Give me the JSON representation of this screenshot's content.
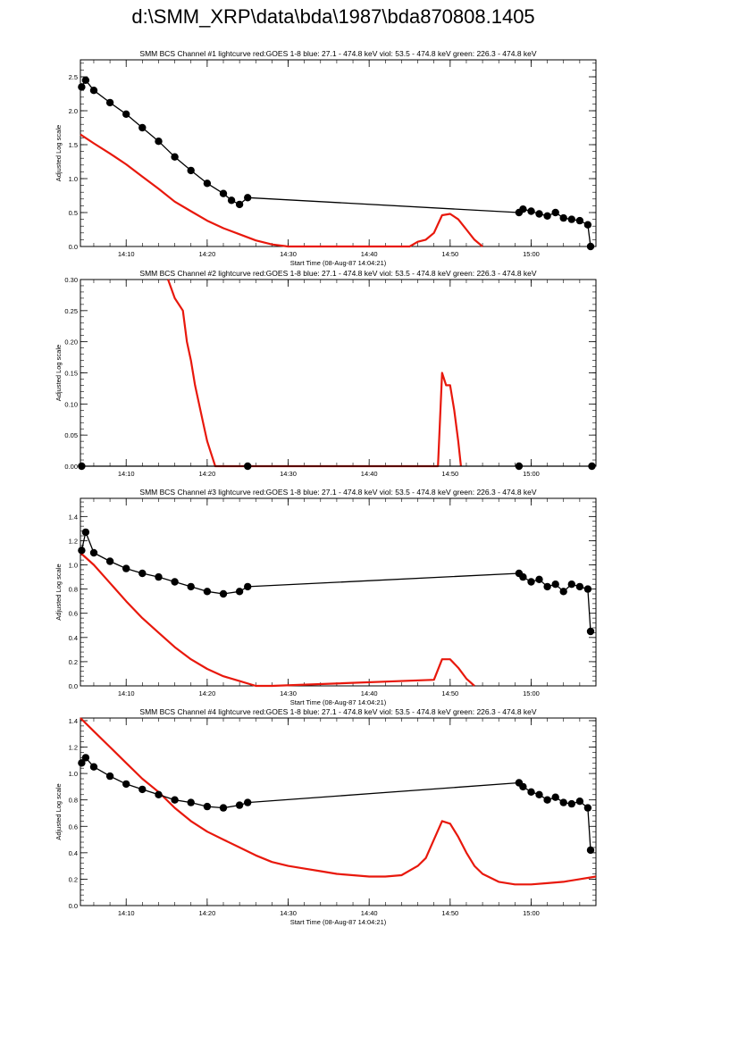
{
  "page_title": "d:\\SMM_XRP\\data\\bda\\1987\\bda870808.1405",
  "colors": {
    "goes": "#e8180c",
    "bcs": "#000000",
    "axes": "#000000"
  },
  "chart_data": [
    {
      "type": "line",
      "title": "SMM BCS Channel #1 lightcurve  red:GOES 1-8  blue: 27.1 - 474.8 keV  viol: 53.5 - 474.8 keV  green: 226.3 - 474.8 keV",
      "xlabel": "Start Time (08-Aug-87 14:04:21)",
      "ylabel": "Adjusted Log scale",
      "x_ticks": [
        "14:10",
        "14:20",
        "14:30",
        "14:40",
        "14:50",
        "15:00"
      ],
      "y_ticks": [
        "0.0",
        "0.5",
        "1.0",
        "1.5",
        "2.0",
        "2.5"
      ],
      "ylim": [
        0,
        2.75
      ],
      "xlim": [
        "14:04:21",
        "15:08:00"
      ],
      "series": [
        {
          "color": "red",
          "x": [
            "14:04:21",
            "14:06",
            "14:08",
            "14:10",
            "14:12",
            "14:14",
            "14:16",
            "14:18",
            "14:20",
            "14:22",
            "14:24",
            "14:26",
            "14:28",
            "14:30",
            "14:45",
            "14:46",
            "14:47",
            "14:48",
            "14:49",
            "14:50",
            "14:51",
            "14:52",
            "14:53",
            "14:54"
          ],
          "y": [
            1.65,
            1.52,
            1.37,
            1.21,
            1.03,
            0.85,
            0.66,
            0.52,
            0.38,
            0.27,
            0.18,
            0.09,
            0.03,
            0.0,
            0.0,
            0.07,
            0.1,
            0.2,
            0.46,
            0.48,
            0.4,
            0.25,
            0.1,
            0.0
          ]
        },
        {
          "color": "black",
          "x": [
            "14:04:30",
            "14:05",
            "14:06",
            "14:08",
            "14:10",
            "14:12",
            "14:14",
            "14:16",
            "14:18",
            "14:20",
            "14:22",
            "14:23",
            "14:24",
            "14:25",
            "14:58:30",
            "14:59",
            "15:00",
            "15:01",
            "15:02",
            "15:03",
            "15:04",
            "15:05",
            "15:06",
            "15:07",
            "15:07:20"
          ],
          "y": [
            2.35,
            2.45,
            2.3,
            2.12,
            1.95,
            1.75,
            1.55,
            1.32,
            1.12,
            0.93,
            0.78,
            0.68,
            0.62,
            0.72,
            0.5,
            0.55,
            0.52,
            0.48,
            0.45,
            0.5,
            0.42,
            0.4,
            0.38,
            0.32,
            0.0
          ]
        }
      ]
    },
    {
      "type": "line",
      "title": "SMM BCS Channel #2 lightcurve  red:GOES 1-8  blue: 27.1 - 474.8 keV  viol: 53.5 - 474.8 keV  green: 226.3 - 474.8 keV",
      "xlabel": "",
      "ylabel": "Adjusted Log scale",
      "x_ticks": [
        "14:10",
        "14:20",
        "14:30",
        "14:40",
        "14:50",
        "15:00"
      ],
      "y_ticks": [
        "0.00",
        "0.05",
        "0.10",
        "0.15",
        "0.20",
        "0.25",
        "0.30"
      ],
      "ylim": [
        0,
        0.3
      ],
      "xlim": [
        "14:04:21",
        "15:08:00"
      ],
      "series": [
        {
          "color": "red",
          "x": [
            "14:15:10",
            "14:16",
            "14:17",
            "14:17:30",
            "14:18",
            "14:18:30",
            "14:19",
            "14:19:30",
            "14:20",
            "14:20:30",
            "14:21",
            "14:23",
            "14:48:30",
            "14:49",
            "14:49:30",
            "14:50",
            "14:50:30",
            "14:51",
            "14:51:20"
          ],
          "y": [
            0.3,
            0.27,
            0.25,
            0.2,
            0.17,
            0.13,
            0.1,
            0.07,
            0.04,
            0.02,
            0.0,
            0.0,
            0.0,
            0.15,
            0.13,
            0.13,
            0.09,
            0.04,
            0.0
          ]
        },
        {
          "color": "black",
          "x": [
            "14:04:30",
            "14:25",
            "14:58:30",
            "15:07:30"
          ],
          "y": [
            0.0,
            0.0,
            0.0,
            0.0
          ]
        }
      ]
    },
    {
      "type": "line",
      "title": "SMM BCS Channel #3 lightcurve  red:GOES 1-8  blue: 27.1 - 474.8 keV  viol: 53.5 - 474.8 keV  green: 226.3 - 474.8 keV",
      "xlabel": "Start Time (08-Aug-87 14:04:21)",
      "ylabel": "Adjusted Log scale",
      "x_ticks": [
        "14:10",
        "14:20",
        "14:30",
        "14:40",
        "14:50",
        "15:00"
      ],
      "y_ticks": [
        "0.0",
        "0.2",
        "0.4",
        "0.6",
        "0.8",
        "1.0",
        "1.2",
        "1.4"
      ],
      "ylim": [
        0,
        1.55
      ],
      "xlim": [
        "14:04:21",
        "15:08:00"
      ],
      "series": [
        {
          "color": "red",
          "x": [
            "14:04:21",
            "14:06",
            "14:08",
            "14:10",
            "14:12",
            "14:14",
            "14:16",
            "14:18",
            "14:20",
            "14:22",
            "14:24",
            "14:26",
            "14:28",
            "14:48",
            "14:49",
            "14:50",
            "14:51",
            "14:52",
            "14:53"
          ],
          "y": [
            1.1,
            1.0,
            0.85,
            0.7,
            0.56,
            0.44,
            0.32,
            0.22,
            0.14,
            0.08,
            0.04,
            0.0,
            0.0,
            0.05,
            0.22,
            0.22,
            0.15,
            0.06,
            0.0
          ]
        },
        {
          "color": "black",
          "x": [
            "14:04:30",
            "14:05",
            "14:06",
            "14:08",
            "14:10",
            "14:12",
            "14:14",
            "14:16",
            "14:18",
            "14:20",
            "14:22",
            "14:24",
            "14:25",
            "14:58:30",
            "14:59",
            "15:00",
            "15:01",
            "15:02",
            "15:03",
            "15:04",
            "15:05",
            "15:06",
            "15:07",
            "15:07:20"
          ],
          "y": [
            1.12,
            1.27,
            1.1,
            1.03,
            0.97,
            0.93,
            0.9,
            0.86,
            0.82,
            0.78,
            0.76,
            0.78,
            0.82,
            0.93,
            0.9,
            0.86,
            0.88,
            0.82,
            0.84,
            0.78,
            0.84,
            0.82,
            0.8,
            0.45
          ]
        }
      ]
    },
    {
      "type": "line",
      "title": "SMM BCS Channel #4 lightcurve  red:GOES 1-8  blue: 27.1 - 474.8 keV  viol: 53.5 - 474.8 keV  green: 226.3 - 474.8 keV",
      "xlabel": "Start Time (08-Aug-87 14:04:21)",
      "ylabel": "Adjusted Log scale",
      "x_ticks": [
        "14:10",
        "14:20",
        "14:30",
        "14:40",
        "14:50",
        "15:00"
      ],
      "y_ticks": [
        "0.0",
        "0.2",
        "0.4",
        "0.6",
        "0.8",
        "1.0",
        "1.2",
        "1.4"
      ],
      "ylim": [
        0,
        1.42
      ],
      "xlim": [
        "14:04:21",
        "15:08:00"
      ],
      "series": [
        {
          "color": "red",
          "x": [
            "14:04:21",
            "14:06",
            "14:08",
            "14:10",
            "14:12",
            "14:14",
            "14:16",
            "14:18",
            "14:20",
            "14:22",
            "14:24",
            "14:26",
            "14:28",
            "14:30",
            "14:32",
            "14:34",
            "14:36",
            "14:38",
            "14:40",
            "14:42",
            "14:44",
            "14:46",
            "14:47",
            "14:48",
            "14:49",
            "14:50",
            "14:51",
            "14:52",
            "14:53",
            "14:54",
            "14:56",
            "14:58",
            "15:00",
            "15:02",
            "15:04",
            "15:06",
            "15:08"
          ],
          "y": [
            1.42,
            1.32,
            1.2,
            1.08,
            0.96,
            0.86,
            0.74,
            0.64,
            0.56,
            0.5,
            0.44,
            0.38,
            0.33,
            0.3,
            0.28,
            0.26,
            0.24,
            0.23,
            0.22,
            0.22,
            0.23,
            0.3,
            0.36,
            0.5,
            0.64,
            0.62,
            0.52,
            0.4,
            0.3,
            0.24,
            0.18,
            0.16,
            0.16,
            0.17,
            0.18,
            0.2,
            0.22
          ]
        },
        {
          "color": "black",
          "x": [
            "14:04:30",
            "14:05",
            "14:06",
            "14:08",
            "14:10",
            "14:12",
            "14:14",
            "14:16",
            "14:18",
            "14:20",
            "14:22",
            "14:24",
            "14:25",
            "14:58:30",
            "14:59",
            "15:00",
            "15:01",
            "15:02",
            "15:03",
            "15:04",
            "15:05",
            "15:06",
            "15:07",
            "15:07:20"
          ],
          "y": [
            1.08,
            1.12,
            1.05,
            0.98,
            0.92,
            0.88,
            0.84,
            0.8,
            0.78,
            0.75,
            0.74,
            0.76,
            0.78,
            0.93,
            0.9,
            0.86,
            0.84,
            0.8,
            0.82,
            0.78,
            0.77,
            0.79,
            0.74,
            0.42
          ]
        }
      ]
    }
  ]
}
